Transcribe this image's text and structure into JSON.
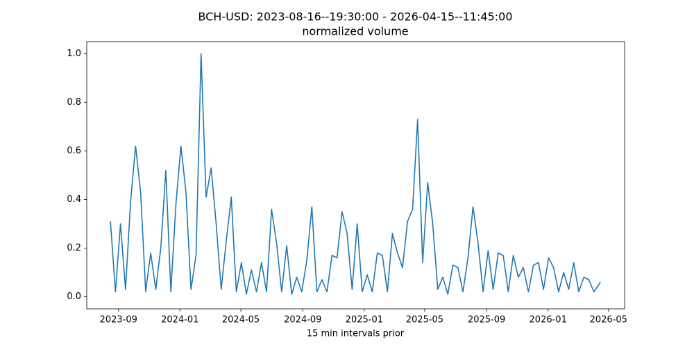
{
  "chart_data": {
    "type": "line",
    "title": "BCH-USD: 2023-08-16--19:30:00 - 2026-04-15--11:45:00",
    "subtitle": "normalized volume",
    "x_label": "15 min intervals prior",
    "color": "#1f77b4",
    "x": [
      "2023-08-16",
      "2023-08-26",
      "2023-09-05",
      "2023-09-15",
      "2023-09-25",
      "2023-10-05",
      "2023-10-15",
      "2023-10-25",
      "2023-11-04",
      "2023-11-14",
      "2023-11-24",
      "2023-12-04",
      "2023-12-14",
      "2023-12-24",
      "2024-01-03",
      "2024-01-13",
      "2024-01-23",
      "2024-02-02",
      "2024-02-12",
      "2024-02-22",
      "2024-03-03",
      "2024-03-13",
      "2024-03-23",
      "2024-04-02",
      "2024-04-12",
      "2024-04-22",
      "2024-05-02",
      "2024-05-12",
      "2024-05-22",
      "2024-06-01",
      "2024-06-11",
      "2024-06-21",
      "2024-07-01",
      "2024-07-11",
      "2024-07-21",
      "2024-07-31",
      "2024-08-10",
      "2024-08-20",
      "2024-08-30",
      "2024-09-09",
      "2024-09-19",
      "2024-09-29",
      "2024-10-09",
      "2024-10-19",
      "2024-10-29",
      "2024-11-08",
      "2024-11-18",
      "2024-11-28",
      "2024-12-08",
      "2024-12-18",
      "2024-12-28",
      "2025-01-07",
      "2025-01-17",
      "2025-01-27",
      "2025-02-06",
      "2025-02-16",
      "2025-02-26",
      "2025-03-08",
      "2025-03-18",
      "2025-03-28",
      "2025-04-07",
      "2025-04-17",
      "2025-04-27",
      "2025-05-07",
      "2025-05-17",
      "2025-05-27",
      "2025-06-06",
      "2025-06-16",
      "2025-06-26",
      "2025-07-06",
      "2025-07-16",
      "2025-07-26",
      "2025-08-05",
      "2025-08-15",
      "2025-08-25",
      "2025-09-04",
      "2025-09-14",
      "2025-09-24",
      "2025-10-04",
      "2025-10-14",
      "2025-10-24",
      "2025-11-03",
      "2025-11-13",
      "2025-11-23",
      "2025-12-03",
      "2025-12-13",
      "2025-12-23",
      "2026-01-02",
      "2026-01-12",
      "2026-01-22",
      "2026-02-01",
      "2026-02-11",
      "2026-02-21",
      "2026-03-03",
      "2026-03-13",
      "2026-03-23",
      "2026-04-02",
      "2026-04-12",
      "2026-04-15"
    ],
    "values": [
      0.31,
      0.02,
      0.3,
      0.03,
      0.39,
      0.62,
      0.43,
      0.02,
      0.18,
      0.03,
      0.2,
      0.52,
      0.02,
      0.38,
      0.62,
      0.43,
      0.03,
      0.17,
      1.0,
      0.41,
      0.53,
      0.3,
      0.03,
      0.23,
      0.41,
      0.02,
      0.14,
      0.01,
      0.11,
      0.02,
      0.14,
      0.02,
      0.36,
      0.22,
      0.02,
      0.21,
      0.01,
      0.08,
      0.02,
      0.15,
      0.37,
      0.02,
      0.07,
      0.02,
      0.17,
      0.16,
      0.35,
      0.26,
      0.03,
      0.3,
      0.02,
      0.09,
      0.02,
      0.18,
      0.17,
      0.02,
      0.26,
      0.18,
      0.12,
      0.31,
      0.36,
      0.73,
      0.14,
      0.47,
      0.3,
      0.03,
      0.08,
      0.01,
      0.13,
      0.12,
      0.02,
      0.16,
      0.37,
      0.22,
      0.02,
      0.19,
      0.03,
      0.18,
      0.17,
      0.02,
      0.17,
      0.08,
      0.12,
      0.02,
      0.13,
      0.14,
      0.03,
      0.16,
      0.12,
      0.02,
      0.1,
      0.03,
      0.14,
      0.02,
      0.08,
      0.07,
      0.02,
      0.05,
      0.06
    ],
    "xlim": [
      "2023-06-30",
      "2026-06-02"
    ],
    "xticks": [
      "2023-09",
      "2024-01",
      "2024-05",
      "2024-09",
      "2025-01",
      "2025-05",
      "2025-09",
      "2026-01",
      "2026-05"
    ],
    "ylim": [
      -0.05,
      1.05
    ],
    "yticks": [
      {
        "value": 0,
        "label": "0.0"
      },
      {
        "value": 0.2,
        "label": "0.2"
      },
      {
        "value": 0.4,
        "label": "0.4"
      },
      {
        "value": 0.6,
        "label": "0.6"
      },
      {
        "value": 0.8,
        "label": "0.8"
      },
      {
        "value": 1,
        "label": "1.0"
      }
    ]
  }
}
